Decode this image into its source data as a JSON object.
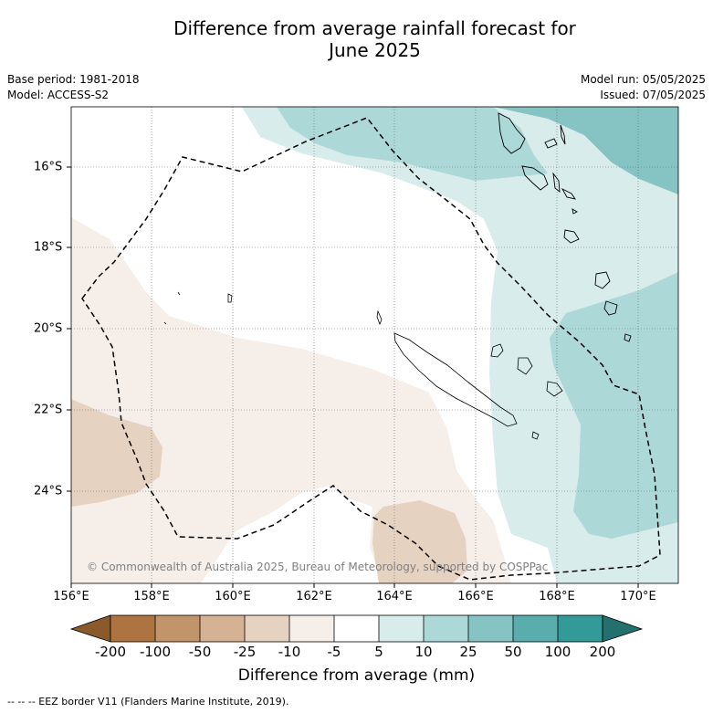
{
  "title_line1": "Difference from average rainfall forecast for",
  "title_line2": "June 2025",
  "base_period": "Base period: 1981-2018",
  "model": "Model: ACCESS-S2",
  "model_run": "Model run: 05/05/2025",
  "issued": "Issued: 07/05/2025",
  "copyright": "© Commonwealth of Australia 2025, Bureau of Meteorology, supported by COSPPac",
  "lon_ticks": [
    "156°E",
    "158°E",
    "160°E",
    "162°E",
    "164°E",
    "166°E",
    "168°E",
    "170°E"
  ],
  "lat_ticks": [
    "16°S",
    "18°S",
    "20°S",
    "22°S",
    "24°S"
  ],
  "colorbar": {
    "title": "Difference from average (mm)",
    "labels": [
      "-200",
      "-100",
      "-50",
      "-25",
      "-10",
      "-5",
      "5",
      "10",
      "25",
      "50",
      "100",
      "200"
    ],
    "colors": [
      "#8b5a2b",
      "#ad7442",
      "#c19469",
      "#d5b294",
      "#e6d2c0",
      "#f5eee9",
      "#ffffff",
      "#d8eceb",
      "#acd8d8",
      "#86c3c3",
      "#5aadad",
      "#339a97",
      "#23706f"
    ]
  },
  "eez_legend": "--  --  -- EEZ border V11 (Flanders Marine Institute, 2019)."
}
